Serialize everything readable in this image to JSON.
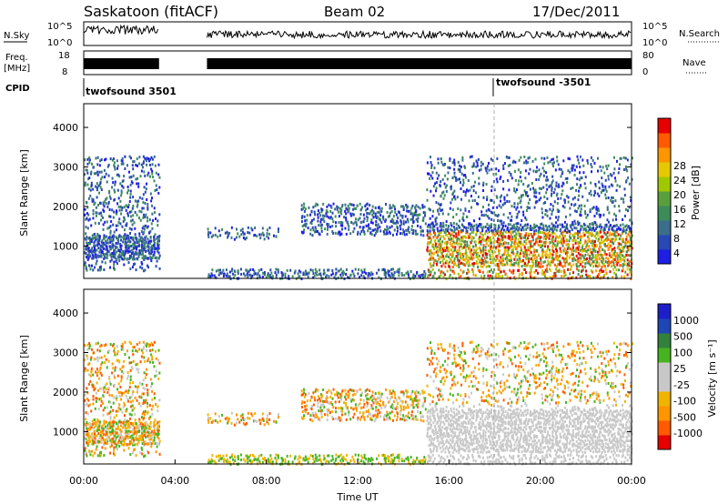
{
  "header": {
    "station": "Saskatoon (fitACF)",
    "beam": "Beam 02",
    "date": "17/Dec/2011"
  },
  "side_labels": {
    "nsky": "N.Sky",
    "nsky_top": "10^5",
    "nsky_bottom": "10^0",
    "freq": "Freq.",
    "freq_unit": "[MHz]",
    "freq_top": "18",
    "freq_bottom": "8",
    "cpid": "CPID",
    "nsearch": "N.Search",
    "nsearch_top": "10^5",
    "nsearch_bottom": "10^0",
    "nave": "Nave",
    "nave_top": "80",
    "nave_bottom": "0"
  },
  "cpid_labels": {
    "first": "twofsound 3501",
    "second": "twofsound -3501"
  },
  "colors": {
    "power": [
      "#1e1ee6",
      "#2848b4",
      "#3a6e8c",
      "#3c8c5a",
      "#5aa03a",
      "#a0c800",
      "#e6c800",
      "#ff9600",
      "#ff5a00",
      "#e60000"
    ],
    "velocity": [
      "#e60000",
      "#ff5a00",
      "#ff9600",
      "#f0b400",
      "#c8c8c8",
      "#c8c8c8",
      "#46b41e",
      "#32823c",
      "#1e46b4",
      "#1e1ec8"
    ],
    "line": "#000000"
  },
  "chart_data": [
    {
      "type": "heatmap",
      "name": "power-panel",
      "ylabel": "Slant Range [km]",
      "yticks": [
        "1000",
        "2000",
        "3000",
        "4000"
      ],
      "ylim": [
        180,
        4600
      ],
      "xlim": [
        0,
        24
      ],
      "colorbar_label": "Power [dB]",
      "colorbar_ticks": [
        "4",
        "8",
        "12",
        "16",
        "20",
        "24",
        "28"
      ],
      "data_gap_hours": [
        3.3,
        5.4
      ]
    },
    {
      "type": "heatmap",
      "name": "velocity-panel",
      "ylabel": "Slant Range [km]",
      "yticks": [
        "1000",
        "2000",
        "3000",
        "4000"
      ],
      "ylim": [
        180,
        4600
      ],
      "xlim": [
        0,
        24
      ],
      "xticks": [
        "00:00",
        "04:00",
        "08:00",
        "12:00",
        "16:00",
        "20:00",
        "00:00"
      ],
      "xlabel": "Time UT",
      "colorbar_label": "Velocity [m s⁻¹]",
      "colorbar_ticks": [
        "1000",
        "500",
        "100",
        "25",
        "-25",
        "-100",
        "-500",
        "-1000"
      ]
    }
  ]
}
